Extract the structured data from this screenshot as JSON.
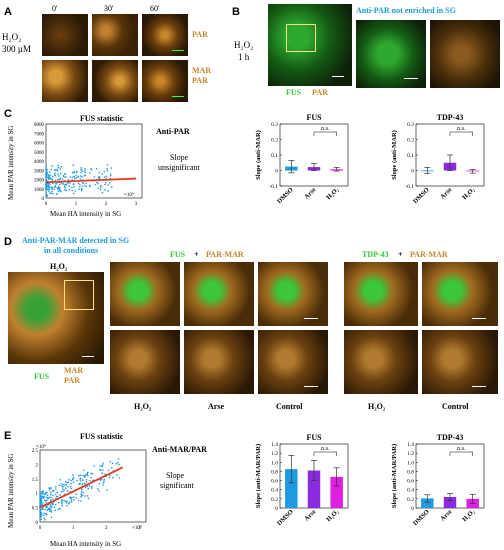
{
  "panels": {
    "A": {
      "label": "A",
      "treatment_line1": "H₂O₂",
      "treatment_line2": "300 µM",
      "timepoints": [
        "0'",
        "30'",
        "60'"
      ],
      "row1_label": "PAR",
      "row2_label_line1": "MAR",
      "row2_label_line2": "PAR"
    },
    "B": {
      "label": "B",
      "treatment_line1": "H₂O₂",
      "treatment_line2": "1 h",
      "title": "Anti-PAR not enriched in SG",
      "channel1": "FUS",
      "channel2": "PAR"
    },
    "C": {
      "label": "C",
      "scatter_title": "FUS statistic",
      "antibody": "Anti-PAR",
      "conclusion_line1": "Slope",
      "conclusion_line2": "unsignificant",
      "ylabel": "Mean PAR intensity in SG",
      "xlabel": "Mean HA intensity in SG",
      "x_exponent": "×10⁴",
      "y_ticks": [
        "0",
        "1000",
        "2000",
        "3000",
        "4000",
        "5000",
        "6000",
        "7000",
        "8000"
      ],
      "x_ticks": [
        "0",
        "1",
        "2",
        "3"
      ],
      "bar_ylabel": "Slope (anti-MAR)",
      "bar_y_ticks_fus": [
        "-0.1",
        "0",
        "0.1",
        "0.2",
        "0.3"
      ],
      "bar_y_ticks_tdp": [
        "-0.1",
        "0",
        "0.1",
        "0.2",
        "0.3"
      ],
      "ns": "n.s."
    },
    "D": {
      "label": "D",
      "title_line1": "Anti-PAR-MAR detected in SG",
      "title_line2": "in all conditions",
      "treatment": "H₂O₂",
      "channel1": "FUS",
      "channel2_line1": "MAR",
      "channel2_line2": "PAR",
      "header_left": [
        "FUS",
        "+",
        "PAR-MAR"
      ],
      "header_right": [
        "TDP-43",
        "+",
        "PAR-MAR"
      ],
      "col_labels_left": [
        "H₂O₂",
        "Arse",
        "Control"
      ],
      "col_labels_right": [
        "H₂O₂",
        "Control"
      ]
    },
    "E": {
      "label": "E",
      "scatter_title": "FUS statistic",
      "antibody": "Anti-MAR/PAR",
      "conclusion_line1": "Slope",
      "conclusion_line2": "significant",
      "ylabel": "Mean PAR intensity in SG",
      "xlabel": "Mean HA intensity in SG",
      "y_exponent": "×10⁴",
      "x_exponent": "×10⁴",
      "y_ticks": [
        "0",
        "0.5",
        "1",
        "1.5",
        "2",
        "2.5"
      ],
      "x_ticks": [
        "0",
        "1",
        "2",
        "3"
      ],
      "bar_ylabel": "Slope (anti-MAR/PAR)",
      "bar_y_ticks_fus": [
        "0",
        "0.2",
        "0.4",
        "0.6",
        "0.8",
        "1.0",
        "1.2",
        "1.4"
      ],
      "bar_y_ticks_tdp": [
        "0",
        "0.2",
        "0.4",
        "0.6",
        "0.8",
        "1.0",
        "1.2",
        "1.4"
      ],
      "ns": "n.s."
    }
  },
  "colors": {
    "blue": "#1e9be0",
    "purple": "#8a2be2",
    "magenta": "#e020e0",
    "orange": "#c8862a",
    "green": "#37c837",
    "regression": "#e53a1e"
  },
  "chart_data": [
    {
      "type": "bar",
      "title": "FUS",
      "panel": "C",
      "categories": [
        "DMSO",
        "Arse",
        "H₂O₂"
      ],
      "values": [
        0.025,
        0.022,
        0.008
      ],
      "errors": [
        0.04,
        0.022,
        0.012
      ],
      "ylabel": "Slope (anti-MAR)",
      "ylim": [
        -0.1,
        0.3
      ],
      "annotation": "n.s. between Arse and H₂O₂"
    },
    {
      "type": "bar",
      "title": "TDP-43",
      "panel": "C",
      "categories": [
        "DMSO",
        "Arse",
        "H₂O₂"
      ],
      "values": [
        0.0,
        0.05,
        -0.005
      ],
      "errors": [
        0.02,
        0.05,
        0.012
      ],
      "ylabel": "Slope (anti-MAR)",
      "ylim": [
        -0.1,
        0.3
      ],
      "annotation": "n.s. between Arse and H₂O₂"
    },
    {
      "type": "bar",
      "title": "FUS",
      "panel": "E",
      "categories": [
        "DMSO",
        "Arse",
        "H₂O₂"
      ],
      "values": [
        0.85,
        0.82,
        0.68
      ],
      "errors": [
        0.3,
        0.22,
        0.2
      ],
      "ylabel": "Slope (anti-MAR/PAR)",
      "ylim": [
        0,
        1.4
      ],
      "annotation": "n.s. between Arse and H₂O₂"
    },
    {
      "type": "bar",
      "title": "TDP-43",
      "panel": "E",
      "categories": [
        "DMSO",
        "Arse",
        "H₂O₂"
      ],
      "values": [
        0.21,
        0.24,
        0.2
      ],
      "errors": [
        0.08,
        0.08,
        0.1
      ],
      "ylabel": "Slope (anti-MAR/PAR)",
      "ylim": [
        0,
        1.4
      ],
      "annotation": "n.s. between Arse and H₂O₂"
    },
    {
      "type": "scatter",
      "title": "FUS statistic",
      "panel": "C",
      "xlabel": "Mean HA intensity in SG",
      "ylabel": "Mean PAR intensity in SG",
      "xlim": [
        0,
        3.2
      ],
      "ylim": [
        0,
        8000
      ],
      "x_units": "×10⁴",
      "regression": {
        "x": [
          0,
          3.0
        ],
        "y": [
          1700,
          2100
        ]
      }
    },
    {
      "type": "scatter",
      "title": "FUS statistic",
      "panel": "E",
      "xlabel": "Mean HA intensity in SG",
      "ylabel": "Mean PAR intensity in SG",
      "xlim": [
        0,
        3.2
      ],
      "ylim": [
        0,
        2.5
      ],
      "x_units": "×10⁴",
      "y_units": "×10⁴",
      "regression": {
        "x": [
          0,
          2.5
        ],
        "y": [
          0.5,
          1.9
        ]
      }
    }
  ]
}
